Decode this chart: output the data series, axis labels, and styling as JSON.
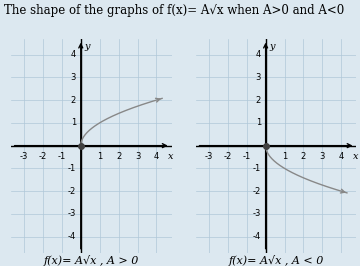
{
  "title": "The shape of the graphs of f(x)= A√x when A>0 and A<0",
  "title_fontsize": 8.5,
  "background_color": "#dce8f0",
  "grid_color": "#b0c8d8",
  "axis_color": "#000000",
  "curve_color": "#888888",
  "dot_color": "#404040",
  "label_left": "f(x)= A√x , A > 0",
  "label_right": "f(x)= A√x , A < 0",
  "label_fontsize": 8,
  "xlim": [
    -3.7,
    4.8
  ],
  "ylim": [
    -4.7,
    4.7
  ],
  "xticks": [
    -3,
    -2,
    -1,
    1,
    2,
    3,
    4
  ],
  "yticks": [
    -4,
    -3,
    -2,
    -1,
    1,
    2,
    3,
    4
  ]
}
